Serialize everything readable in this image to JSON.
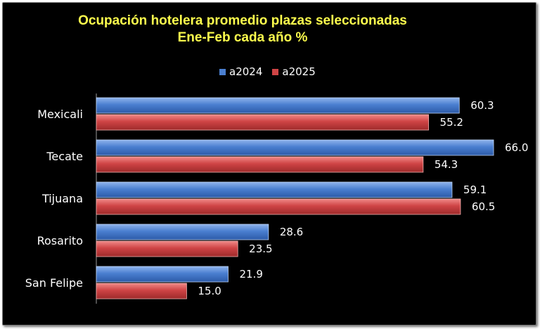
{
  "chart_data": {
    "type": "bar",
    "orientation": "horizontal",
    "title": [
      "Ocupación hotelera promedio plazas seleccionadas",
      "Ene-Feb cada año %"
    ],
    "categories": [
      "Mexicali",
      "Tecate",
      "Tijuana",
      "Rosarito",
      "San Felipe"
    ],
    "series": [
      {
        "name": "a2024",
        "values": [
          60.3,
          66.0,
          59.1,
          28.6,
          21.9
        ],
        "labels": [
          "60.3",
          "66.0",
          "59.1",
          "28.6",
          "21.9"
        ],
        "color": "#4a7fd0"
      },
      {
        "name": "a2025",
        "values": [
          55.2,
          54.3,
          60.5,
          23.5,
          15.0
        ],
        "labels": [
          "55.2",
          "54.3",
          "60.5",
          "23.5",
          "15.0"
        ],
        "color": "#cf4445"
      }
    ],
    "xlim": [
      0,
      70
    ],
    "legend_position": "top",
    "grid": false,
    "background": "#000000",
    "title_color": "#ffff4d"
  }
}
